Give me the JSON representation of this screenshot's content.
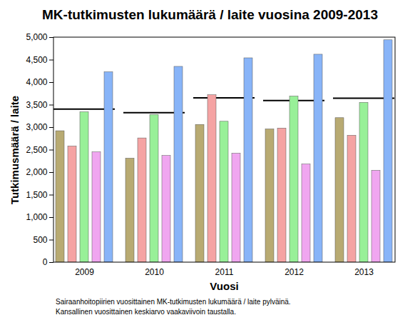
{
  "chart_data": {
    "type": "bar",
    "title": "MK-tutkimusten lukumäärä / laite vuosina 2009-2013",
    "x_label": "Vuosi",
    "y_label": "Tutkimusmäärä / laite",
    "caption": [
      "Sairaanhoitopiirien vuosittainen MK-tutkimusten lukumäärä / laite pylväinä.",
      "Kansallinen vuosittainen keskiarvo vaakaviivoin taustalla."
    ],
    "categories": [
      "2009",
      "2010",
      "2011",
      "2012",
      "2013"
    ],
    "series": [
      {
        "color": "#b8aa72",
        "values": [
          2920,
          2310,
          3060,
          2960,
          3210
        ]
      },
      {
        "color": "#f5a3a3",
        "values": [
          2580,
          2760,
          3720,
          2980,
          2820
        ]
      },
      {
        "color": "#98f098",
        "values": [
          3340,
          3280,
          3130,
          3690,
          3550
        ]
      },
      {
        "color": "#f0a6f0",
        "values": [
          2450,
          2370,
          2420,
          2180,
          2040
        ]
      },
      {
        "color": "#88b4f8",
        "values": [
          4230,
          4350,
          4540,
          4620,
          4940
        ]
      },
      {
        "type": "line",
        "line_style": "segment",
        "color": "#000000",
        "values": [
          3410,
          3330,
          3660,
          3600,
          3650
        ]
      }
    ],
    "ylim": [
      0,
      5000
    ],
    "yticks": [
      0,
      500,
      1000,
      1500,
      2000,
      2500,
      3000,
      3500,
      4000,
      4500,
      5000
    ],
    "grid": false
  }
}
